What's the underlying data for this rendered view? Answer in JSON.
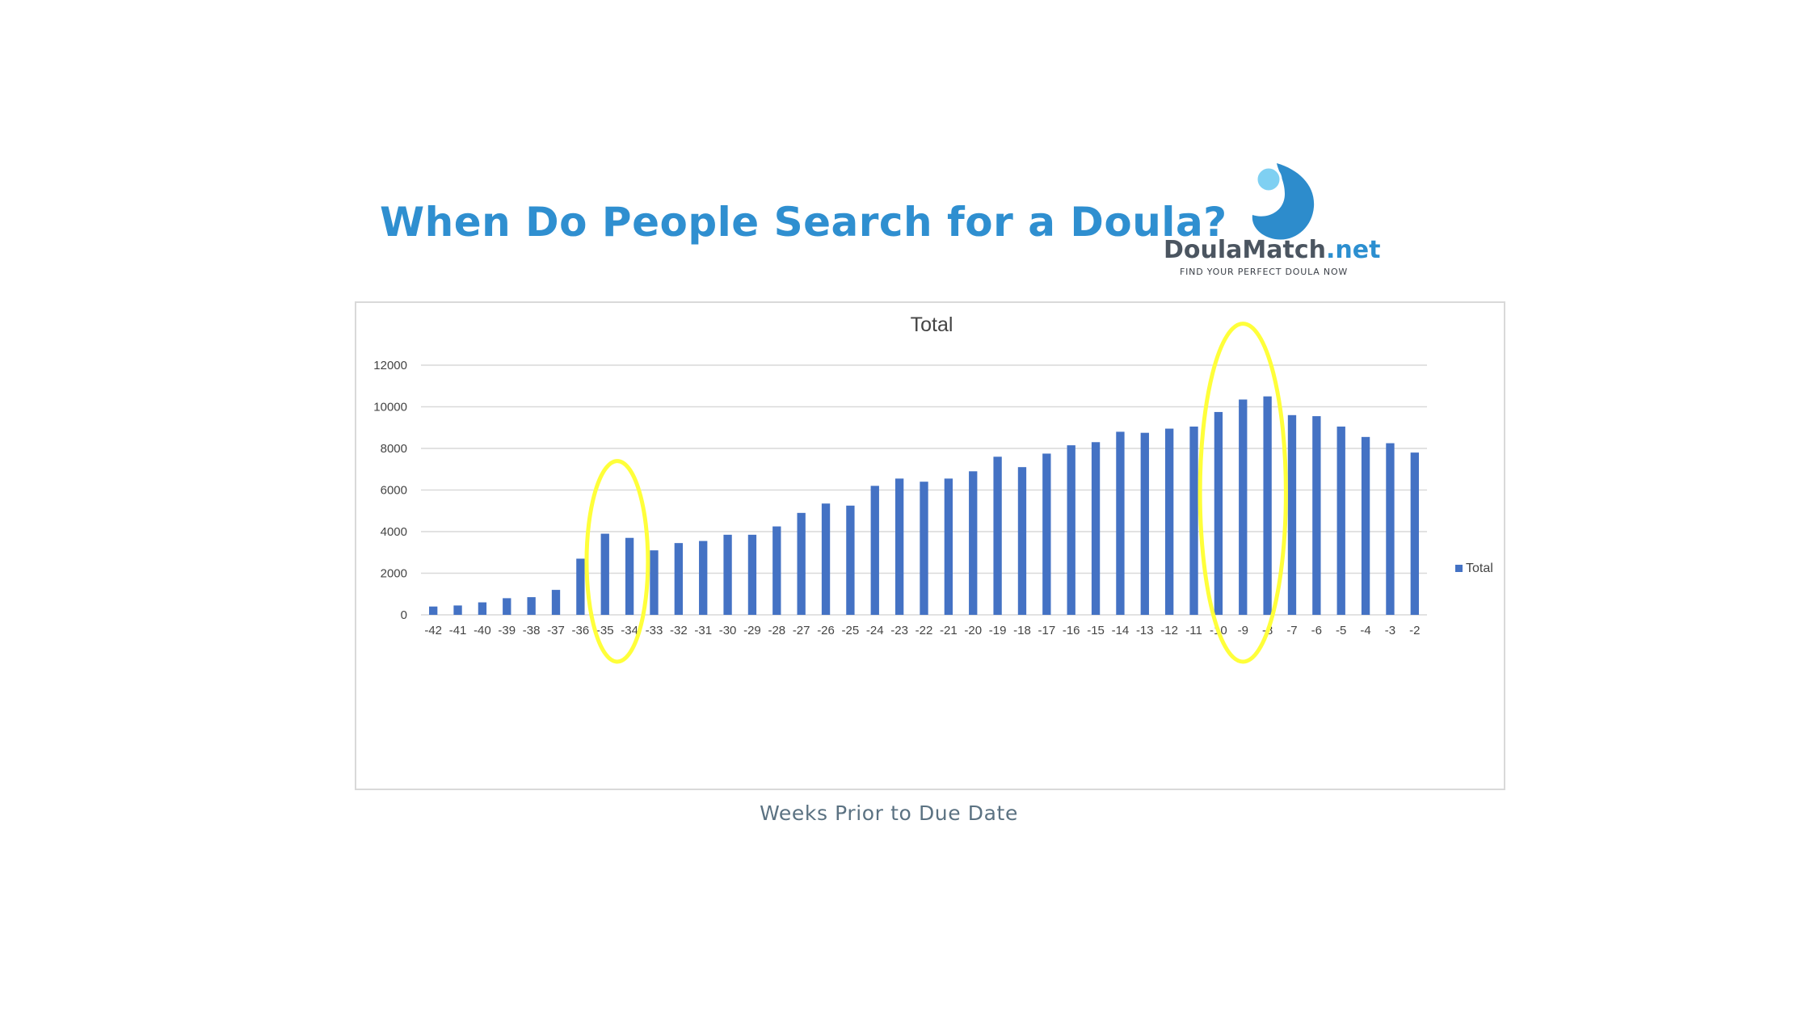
{
  "slide": {
    "title": "When Do People Search for a Doula?",
    "x_caption": "Weeks Prior to Due Date"
  },
  "logo": {
    "brand": "DoulaMatch",
    "tld": ".net",
    "tagline": "FIND YOUR PERFECT DOULA NOW"
  },
  "colors": {
    "title": "#2f8fd0",
    "bar": "#4472c4",
    "highlight": "#ffff3a",
    "gridline": "#d9d9d9"
  },
  "chart_data": {
    "type": "bar",
    "title": "Total",
    "xlabel": "",
    "ylabel": "",
    "ylim": [
      0,
      12000
    ],
    "yticks": [
      0,
      2000,
      4000,
      6000,
      8000,
      10000,
      12000
    ],
    "grid": true,
    "legend_position": "right",
    "categories": [
      "-42",
      "-41",
      "-40",
      "-39",
      "-38",
      "-37",
      "-36",
      "-35",
      "-34",
      "-33",
      "-32",
      "-31",
      "-30",
      "-29",
      "-28",
      "-27",
      "-26",
      "-25",
      "-24",
      "-23",
      "-22",
      "-21",
      "-20",
      "-19",
      "-18",
      "-17",
      "-16",
      "-15",
      "-14",
      "-13",
      "-12",
      "-11",
      "-10",
      "-9",
      "-8",
      "-7",
      "-6",
      "-5",
      "-4",
      "-3",
      "-2"
    ],
    "series": [
      {
        "name": "Total",
        "values": [
          400,
          450,
          600,
          800,
          850,
          1200,
          2700,
          3900,
          3700,
          3100,
          3450,
          3550,
          3850,
          3850,
          4250,
          4900,
          5350,
          5250,
          6200,
          6550,
          6400,
          6550,
          6900,
          7600,
          7100,
          7750,
          8150,
          8300,
          8800,
          8750,
          8950,
          9050,
          9750,
          10350,
          10500,
          9600,
          9550,
          9050,
          8550,
          8250,
          7800
        ]
      }
    ],
    "highlights": [
      {
        "from": "-35",
        "to": "-34"
      },
      {
        "from": "-10",
        "to": "-8"
      }
    ]
  }
}
